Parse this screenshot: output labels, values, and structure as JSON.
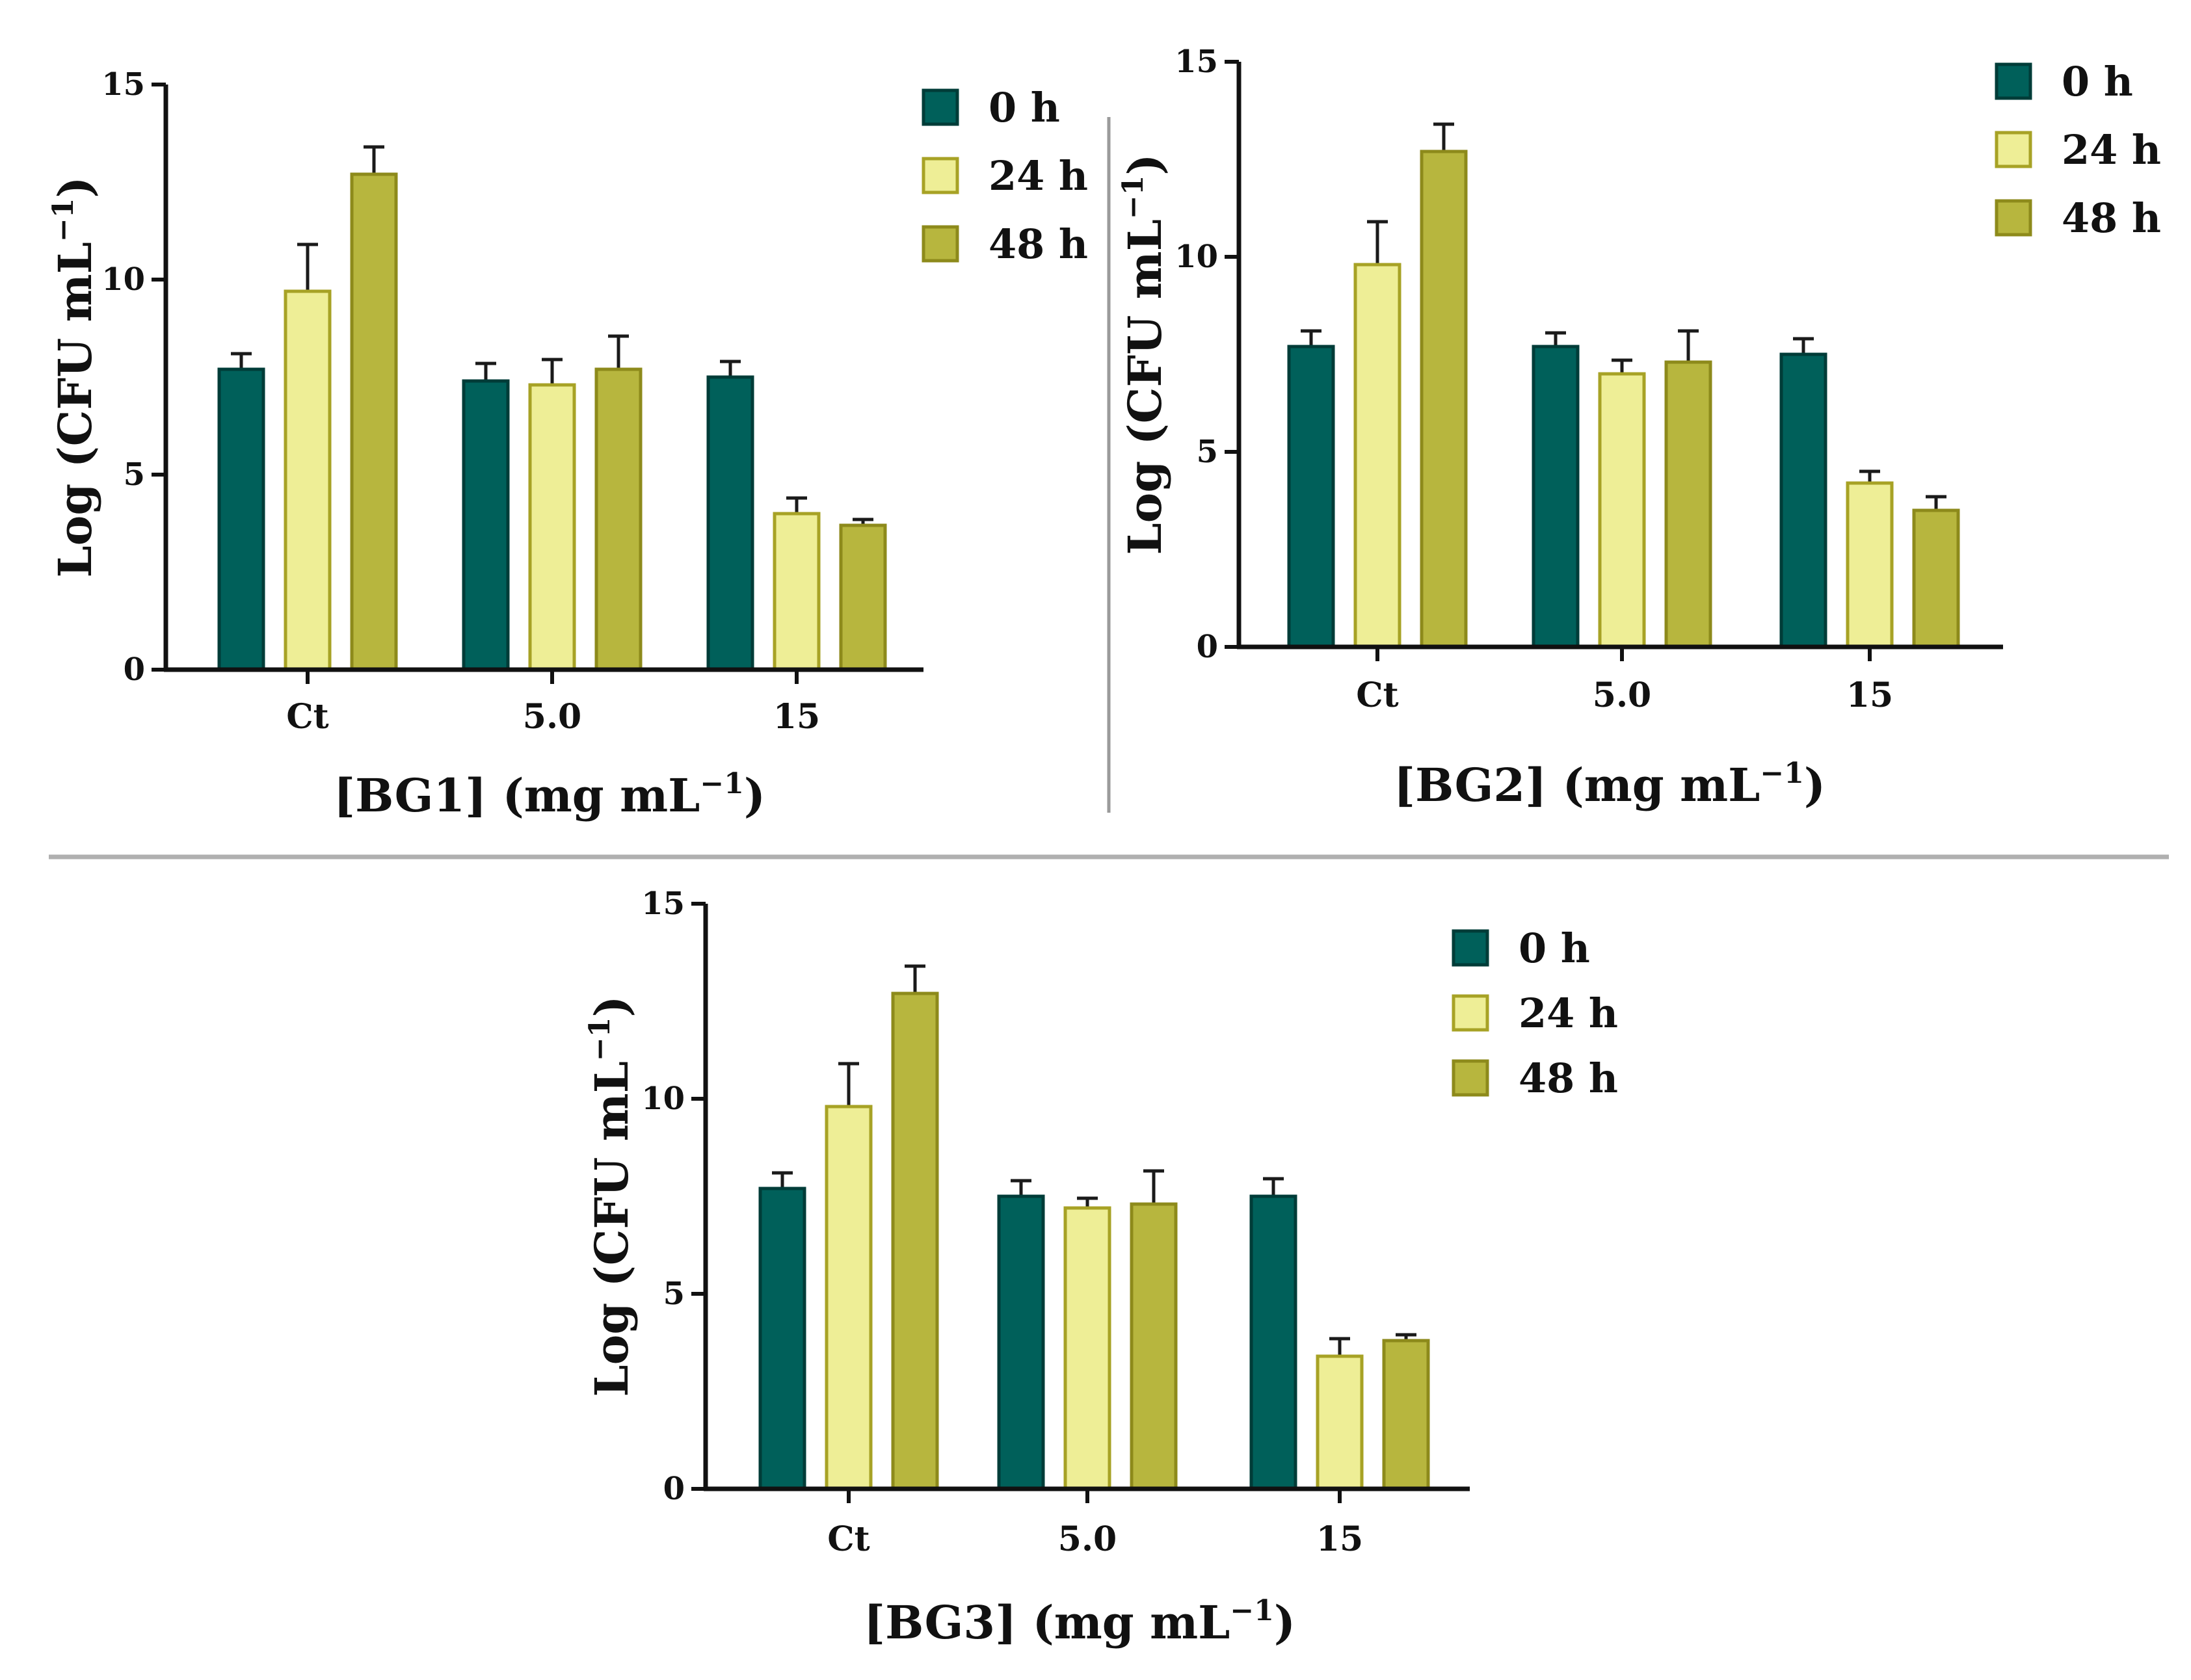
{
  "legend": [
    {
      "label": "0 h",
      "fill": "#00605a",
      "stroke": "#003c38"
    },
    {
      "label": "24 h",
      "fill": "#eeee96",
      "stroke": "#a7a225"
    },
    {
      "label": "48 h",
      "fill": "#b7b63e",
      "stroke": "#8d8a1b"
    }
  ],
  "chart_data": [
    {
      "type": "bar",
      "title": "",
      "xlabel": "[BG1] (mg mL",
      "xlabel_sup": "−1",
      "xlabel_end": ")",
      "ylabel": "Log (CFU mL",
      "ylabel_sup": "−1",
      "ylabel_end": ")",
      "ylim": [
        0,
        15
      ],
      "yticks": [
        "0",
        "5",
        "10",
        "15"
      ],
      "categories": [
        "Ct",
        "5.0",
        "15"
      ],
      "series": [
        {
          "name": "0 h",
          "values": [
            7.7,
            7.4,
            7.5
          ],
          "errors": [
            0.4,
            0.45,
            0.4
          ]
        },
        {
          "name": "24 h",
          "values": [
            9.7,
            7.3,
            4.0
          ],
          "errors": [
            1.2,
            0.65,
            0.4
          ]
        },
        {
          "name": "48 h",
          "values": [
            12.7,
            7.7,
            3.7
          ],
          "errors": [
            0.7,
            0.85,
            0.15
          ]
        }
      ]
    },
    {
      "type": "bar",
      "title": "",
      "xlabel": "[BG2] (mg mL",
      "xlabel_sup": "−1",
      "xlabel_end": ")",
      "ylabel": "Log (CFU mL",
      "ylabel_sup": "−1",
      "ylabel_end": ")",
      "ylim": [
        0,
        15
      ],
      "yticks": [
        "0",
        "5",
        "10",
        "15"
      ],
      "categories": [
        "Ct",
        "5.0",
        "15"
      ],
      "series": [
        {
          "name": "0 h",
          "values": [
            7.7,
            7.7,
            7.5
          ],
          "errors": [
            0.4,
            0.35,
            0.4
          ]
        },
        {
          "name": "24 h",
          "values": [
            9.8,
            7.0,
            4.2
          ],
          "errors": [
            1.1,
            0.35,
            0.3
          ]
        },
        {
          "name": "48 h",
          "values": [
            12.7,
            7.3,
            3.5
          ],
          "errors": [
            0.7,
            0.8,
            0.35
          ]
        }
      ]
    },
    {
      "type": "bar",
      "title": "",
      "xlabel": "[BG3] (mg mL",
      "xlabel_sup": "−1",
      "xlabel_end": ")",
      "ylabel": "Log (CFU mL",
      "ylabel_sup": "−1",
      "ylabel_end": ")",
      "ylim": [
        0,
        15
      ],
      "yticks": [
        "0",
        "5",
        "10",
        "15"
      ],
      "categories": [
        "Ct",
        "5.0",
        "15"
      ],
      "series": [
        {
          "name": "0 h",
          "values": [
            7.7,
            7.5,
            7.5
          ],
          "errors": [
            0.4,
            0.4,
            0.45
          ]
        },
        {
          "name": "24 h",
          "values": [
            9.8,
            7.2,
            3.4
          ],
          "errors": [
            1.1,
            0.25,
            0.45
          ]
        },
        {
          "name": "48 h",
          "values": [
            12.7,
            7.3,
            3.8
          ],
          "errors": [
            0.7,
            0.85,
            0.15
          ]
        }
      ]
    }
  ]
}
